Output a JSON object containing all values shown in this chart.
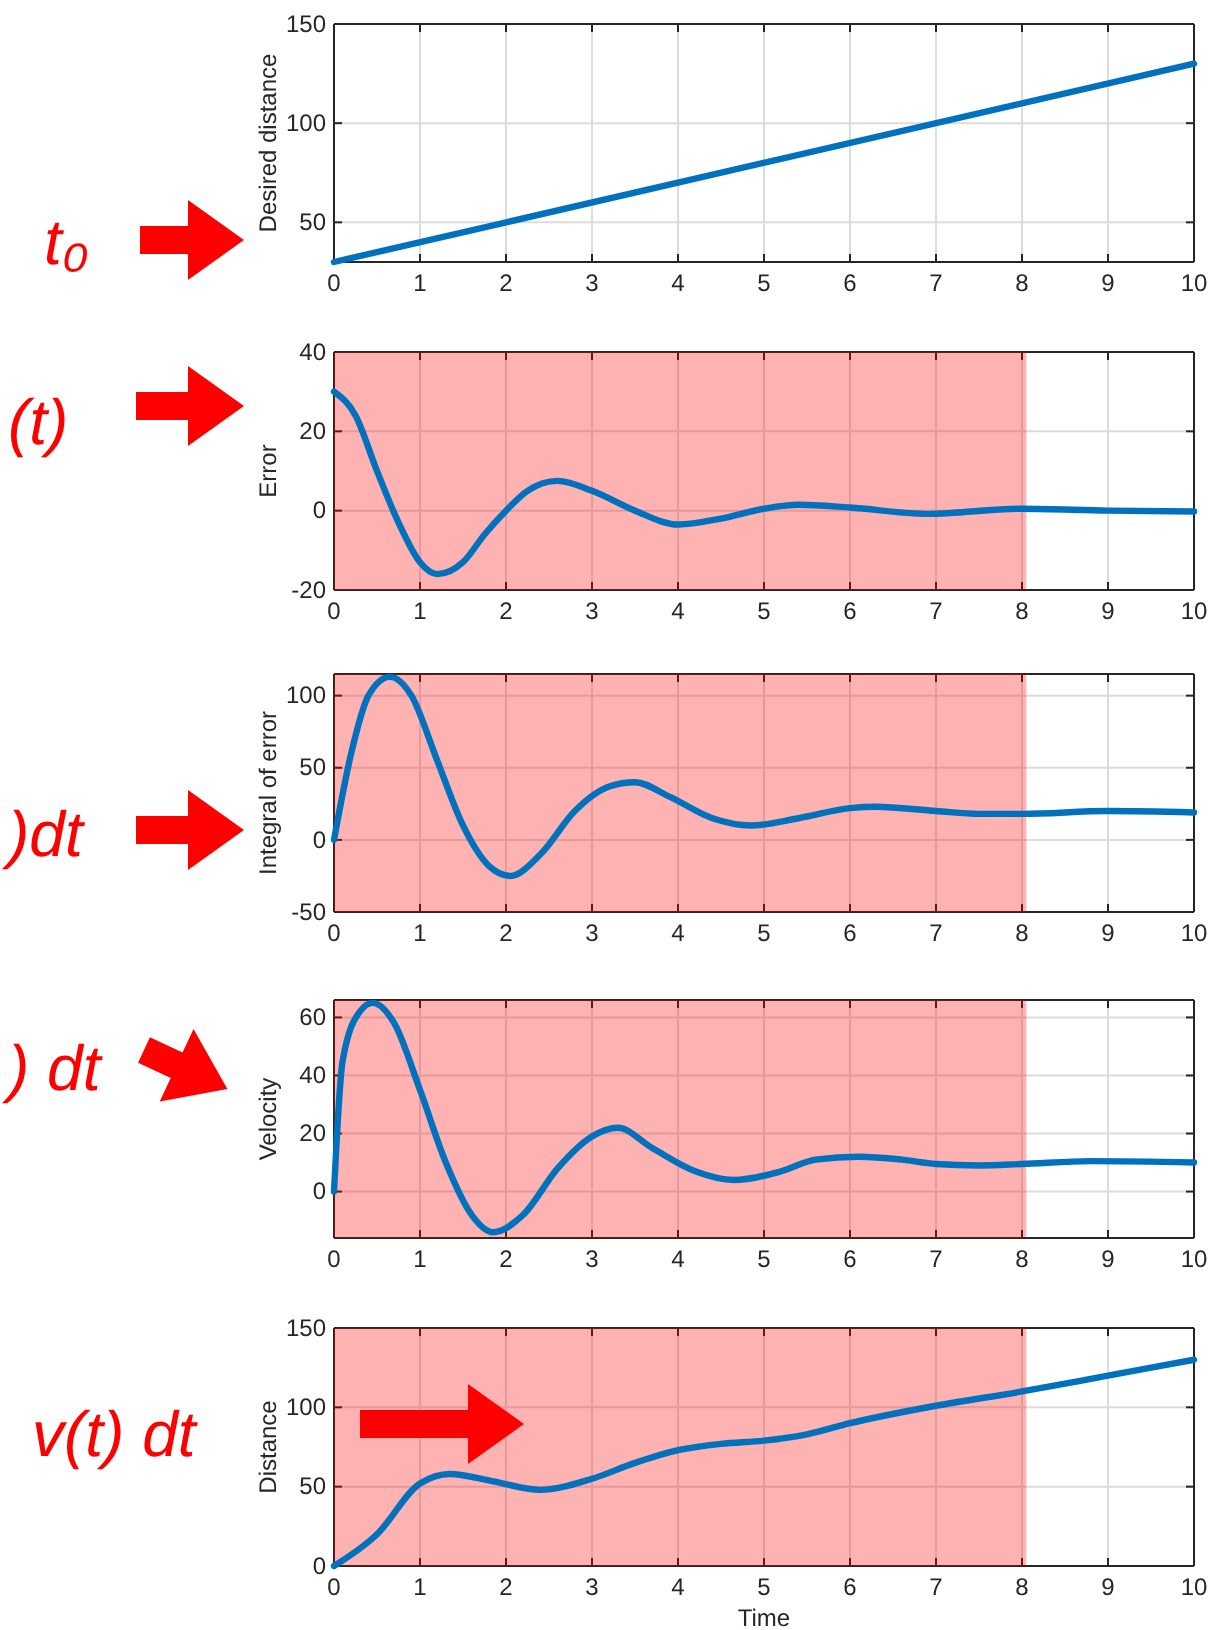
{
  "chart_data": [
    {
      "type": "line",
      "x": [
        0,
        10
      ],
      "series": [
        {
          "color": "#0072bd",
          "values": [
            30,
            130
          ]
        }
      ],
      "xlim": [
        0,
        10
      ],
      "ylim": [
        30,
        150
      ],
      "xticks": [
        0,
        1,
        2,
        3,
        4,
        5,
        6,
        7,
        8,
        9,
        10
      ],
      "yticks": [
        50,
        100,
        150
      ],
      "ylabel": "Desired distance",
      "grid": true,
      "annotations": [
        "t₀"
      ]
    },
    {
      "type": "line",
      "x": [
        0,
        0.25,
        0.5,
        0.75,
        1.0,
        1.2,
        1.5,
        1.75,
        2.0,
        2.25,
        2.6,
        3.0,
        3.5,
        4.0,
        4.5,
        5.0,
        5.4,
        6.0,
        6.9,
        8,
        9,
        10
      ],
      "series": [
        {
          "color": "#0072bd",
          "values": [
            30,
            24,
            10,
            -3,
            -13,
            -16,
            -13,
            -6,
            0,
            5,
            7.5,
            5,
            0,
            -3.5,
            -2,
            0.5,
            1.5,
            0.8,
            -0.8,
            0.5,
            0,
            -0.2
          ]
        }
      ],
      "xlim": [
        0,
        10
      ],
      "ylim": [
        -20,
        40
      ],
      "xticks": [
        0,
        1,
        2,
        3,
        4,
        5,
        6,
        7,
        8,
        9,
        10
      ],
      "yticks": [
        -20,
        0,
        20,
        40
      ],
      "ylabel": "Error",
      "grid": true,
      "bands": [
        {
          "axis": "x",
          "from": 0,
          "to": 8.05,
          "color": "#ff0000"
        }
      ],
      "annotations": [
        "(t)"
      ]
    },
    {
      "type": "line",
      "x": [
        0,
        0.2,
        0.4,
        0.65,
        0.9,
        1.2,
        1.5,
        1.8,
        2.05,
        2.4,
        2.8,
        3.2,
        3.5,
        3.9,
        4.4,
        4.85,
        5.4,
        6.0,
        6.3,
        7.0,
        7.5,
        8,
        9,
        10
      ],
      "series": [
        {
          "color": "#0072bd",
          "values": [
            0,
            60,
            100,
            113,
            100,
            55,
            10,
            -18,
            -25,
            -10,
            20,
            37,
            40,
            30,
            15,
            10,
            15,
            22,
            23,
            20,
            18,
            18,
            20,
            19
          ]
        }
      ],
      "xlim": [
        0,
        10
      ],
      "ylim": [
        -50,
        115
      ],
      "xticks": [
        0,
        1,
        2,
        3,
        4,
        5,
        6,
        7,
        8,
        9,
        10
      ],
      "yticks": [
        -50,
        0,
        50,
        100
      ],
      "ylabel": "Integral of error",
      "grid": true,
      "bands": [
        {
          "axis": "x",
          "from": 0,
          "to": 8.05,
          "color": "#ff0000"
        }
      ],
      "annotations": [
        ")dt"
      ]
    },
    {
      "type": "line",
      "x": [
        0,
        0.1,
        0.3,
        0.45,
        0.7,
        1.0,
        1.3,
        1.6,
        1.85,
        2.2,
        2.6,
        3.0,
        3.3,
        3.7,
        4.2,
        4.65,
        5.2,
        5.6,
        6.1,
        6.6,
        7.0,
        7.5,
        8,
        8.8,
        10
      ],
      "series": [
        {
          "color": "#0072bd",
          "values": [
            0,
            45,
            62,
            65,
            58,
            35,
            10,
            -8,
            -14,
            -8,
            8,
            19,
            22,
            15,
            7,
            4,
            7,
            11,
            12,
            11,
            9.5,
            9,
            9.5,
            10.5,
            10
          ]
        }
      ],
      "xlim": [
        0,
        10
      ],
      "ylim": [
        -16,
        66
      ],
      "xticks": [
        0,
        1,
        2,
        3,
        4,
        5,
        6,
        7,
        8,
        9,
        10
      ],
      "yticks": [
        0,
        20,
        40,
        60
      ],
      "ylabel": "Velocity",
      "grid": true,
      "bands": [
        {
          "axis": "x",
          "from": 0,
          "to": 8.05,
          "color": "#ff0000"
        }
      ],
      "annotations": [
        ") dt"
      ]
    },
    {
      "type": "line",
      "x": [
        0,
        0.5,
        1.0,
        1.35,
        1.8,
        2.4,
        3.0,
        3.5,
        4.0,
        4.5,
        5.0,
        5.5,
        6,
        7,
        8,
        9,
        10
      ],
      "series": [
        {
          "color": "#0072bd",
          "values": [
            0,
            20,
            52,
            58,
            54,
            48,
            55,
            65,
            73,
            77,
            79,
            83,
            90,
            101,
            110,
            120,
            130
          ]
        }
      ],
      "xlim": [
        0,
        10
      ],
      "ylim": [
        0,
        150
      ],
      "xticks": [
        0,
        1,
        2,
        3,
        4,
        5,
        6,
        7,
        8,
        9,
        10
      ],
      "yticks": [
        0,
        50,
        100,
        150
      ],
      "xlabel": "Time",
      "ylabel": "Distance",
      "grid": true,
      "bands": [
        {
          "axis": "x",
          "from": 0,
          "to": 8.05,
          "color": "#ff0000"
        }
      ],
      "annotations": [
        "v(t) dt"
      ]
    }
  ]
}
